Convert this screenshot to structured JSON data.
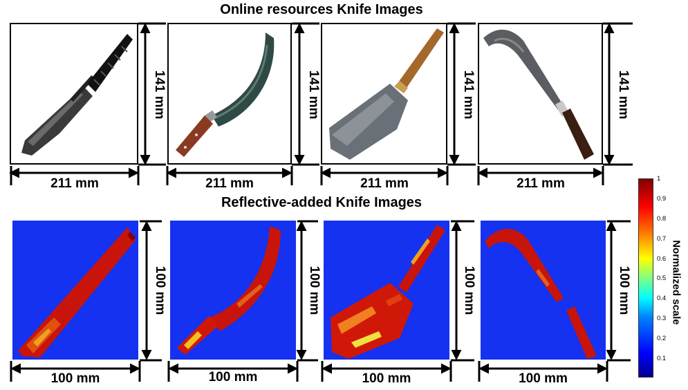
{
  "titles": {
    "top": "Online resources Knife Images",
    "bottom": "Reflective-added Knife Images"
  },
  "top_row": {
    "width_label": "211 mm",
    "height_label": "141 mm"
  },
  "bottom_row": {
    "width_label": "100 mm",
    "height_label": "100 mm"
  },
  "colorbar": {
    "label": "Normalized scale",
    "ticks": [
      "1",
      "0.9",
      "0.8",
      "0.7",
      "0.6",
      "0.5",
      "0.4",
      "0.3",
      "0.2",
      "0.1"
    ],
    "colors": [
      "#00008f",
      "#0000ff",
      "#00ffff",
      "#ffff00",
      "#ff0000",
      "#800000"
    ]
  },
  "knives": [
    {
      "name": "combat-knife-icon"
    },
    {
      "name": "curved-knife-icon"
    },
    {
      "name": "cleaver-icon"
    },
    {
      "name": "billhook-icon"
    }
  ]
}
